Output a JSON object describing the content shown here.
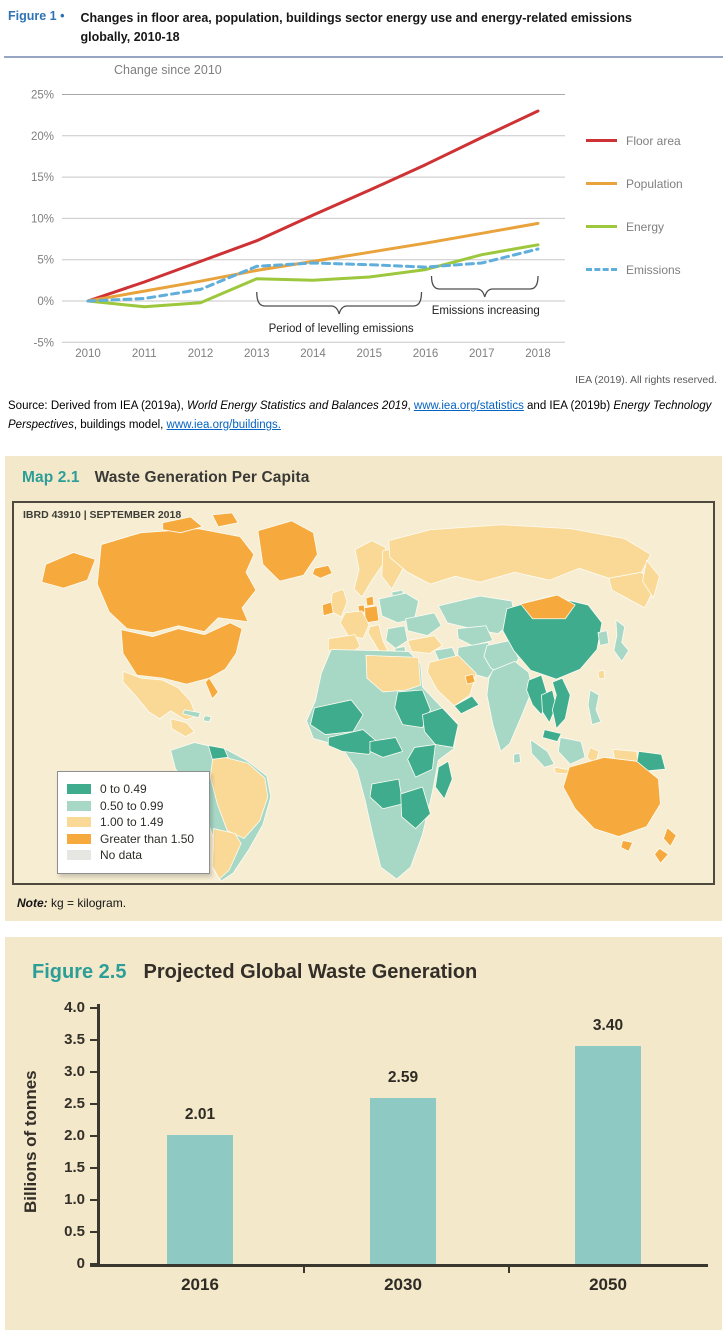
{
  "figure1": {
    "label": "Figure 1 •",
    "title_line1": "Changes in floor area, population, buildings sector energy use and energy-related emissions",
    "title_line2": "globally, 2010-18",
    "credit": "IEA (2019). All rights reserved.",
    "source_parts": [
      {
        "text": "Source: Derived from IEA (2019a), ",
        "style": "normal"
      },
      {
        "text": "World Energy Statistics and Balances 2019",
        "style": "italic"
      },
      {
        "text": ", ",
        "style": "normal"
      },
      {
        "text": "www.iea.org/statistics",
        "style": "link"
      },
      {
        "text": " and IEA (2019b) ",
        "style": "normal"
      },
      {
        "text": "Energy Technology Perspectives",
        "style": "italic"
      },
      {
        "text": ", buildings model, ",
        "style": "normal"
      },
      {
        "text": "www.iea.org/buildings.",
        "style": "link"
      }
    ]
  },
  "chart_data": [
    {
      "type": "line",
      "title": "Change since 2010",
      "x": [
        "2010",
        "2011",
        "2012",
        "2013",
        "2014",
        "2015",
        "2016",
        "2017",
        "2018"
      ],
      "ylim": [
        -5,
        25
      ],
      "ytick_values": [
        25,
        20,
        15,
        10,
        5,
        0,
        -5
      ],
      "ytick_labels": [
        "25%",
        "20%",
        "15%",
        "10%",
        "5%",
        "0%",
        "-5%"
      ],
      "grid": true,
      "legend_position": "right",
      "series": [
        {
          "name": "Floor area",
          "color": "#CE3234",
          "dash": false,
          "values": [
            0,
            2.3,
            4.8,
            7.3,
            10.4,
            13.4,
            16.5,
            19.8,
            23.0
          ]
        },
        {
          "name": "Population",
          "color": "#E8A33D",
          "dash": false,
          "values": [
            0,
            1.2,
            2.4,
            3.7,
            4.8,
            5.9,
            7.0,
            8.2,
            9.4
          ]
        },
        {
          "name": "Energy",
          "color": "#9DC73C",
          "dash": false,
          "values": [
            0,
            -0.7,
            -0.2,
            2.7,
            2.5,
            2.9,
            3.8,
            5.6,
            6.8
          ]
        },
        {
          "name": "Emissions",
          "color": "#5FAEDC",
          "dash": true,
          "values": [
            0,
            0.3,
            1.4,
            4.2,
            4.6,
            4.4,
            4.1,
            4.6,
            6.3
          ]
        }
      ],
      "annotations": [
        {
          "text": "Period of levelling emissions",
          "x_from": "2013",
          "x_to": "2016"
        },
        {
          "text": "Emissions increasing",
          "x_from": "2016",
          "x_to": "2018"
        }
      ]
    },
    {
      "type": "bar",
      "categories": [
        "2016",
        "2030",
        "2050"
      ],
      "values": [
        2.01,
        2.59,
        3.4
      ],
      "labels": [
        "2.01",
        "2.59",
        "3.40"
      ],
      "ylabel": "Billions of tonnes",
      "ylim": [
        0,
        4
      ],
      "ytick_step": 0.5,
      "ytick_labels": [
        "4.0",
        "3.5",
        "3.0",
        "2.5",
        "2.0",
        "1.5",
        "1.0",
        "0.5",
        "0"
      ],
      "bar_color": "#8FC9C4"
    }
  ],
  "map": {
    "label": "Map 2.1",
    "title": "Waste Generation Per Capita",
    "stamp": "IBRD 43910 | SEPTEMBER 2018",
    "legend": [
      {
        "label": "0 to 0.49",
        "color": "#3FAD8D"
      },
      {
        "label": "0.50 to 0.99",
        "color": "#A7D8C6"
      },
      {
        "label": "1.00 to 1.49",
        "color": "#F9D995"
      },
      {
        "label": "Greater than 1.50",
        "color": "#F6A93C"
      },
      {
        "label": "No data",
        "color": "#E6E6E2"
      }
    ],
    "note_label": "Note:",
    "note_text": " kg = kilogram."
  },
  "figure25": {
    "label": "Figure 2.5",
    "title": "Projected Global Waste Generation"
  }
}
